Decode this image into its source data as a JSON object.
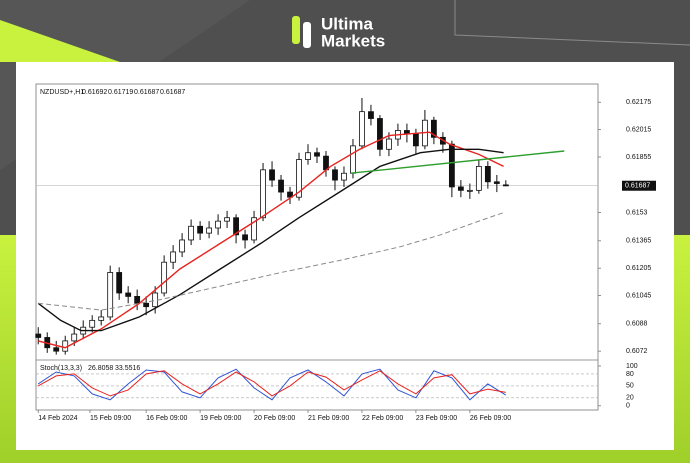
{
  "brand": {
    "line1": "Ultima",
    "line2": "Markets"
  },
  "chart_data": {
    "type": "candlestick",
    "symbol": "NZDUSD+,H1",
    "header_ohlc": [
      0.61692,
      0.61719,
      0.61687,
      0.61687
    ],
    "last_price": 0.61687,
    "ylim": [
      0.6068,
      0.6227
    ],
    "yticks": [
      0.62175,
      0.62015,
      0.61855,
      0.6153,
      0.61365,
      0.61205,
      0.61045,
      0.6088,
      0.6072
    ],
    "xlim": [
      -1,
      249
    ],
    "xticks": [
      {
        "value": 0,
        "label": "14 Feb 2024"
      },
      {
        "value": 23,
        "label": "15 Feb 09:00"
      },
      {
        "value": 48,
        "label": "16 Feb 09:00"
      },
      {
        "value": 72,
        "label": "19 Feb 09:00"
      },
      {
        "value": 96,
        "label": "20 Feb 09:00"
      },
      {
        "value": 120,
        "label": "21 Feb 09:00"
      },
      {
        "value": 144,
        "label": "22 Feb 09:00"
      },
      {
        "value": 168,
        "label": "23 Feb 09:00"
      },
      {
        "value": 192,
        "label": "26 Feb 09:00"
      }
    ],
    "x": [
      0,
      4,
      8,
      12,
      16,
      20,
      24,
      28,
      32,
      36,
      40,
      44,
      48,
      52,
      56,
      60,
      64,
      68,
      72,
      76,
      80,
      84,
      88,
      92,
      96,
      100,
      104,
      108,
      112,
      116,
      120,
      124,
      128,
      132,
      136,
      140,
      144,
      148,
      152,
      156,
      160,
      164,
      168,
      172,
      176,
      180,
      184,
      188,
      192,
      196,
      200,
      204,
      208
    ],
    "open": [
      0.6082,
      0.608,
      0.6074,
      0.6072,
      0.6078,
      0.6082,
      0.6086,
      0.609,
      0.6092,
      0.6118,
      0.6106,
      0.6104,
      0.61,
      0.6098,
      0.6106,
      0.6124,
      0.613,
      0.6137,
      0.6145,
      0.6141,
      0.6144,
      0.6148,
      0.615,
      0.614,
      0.6137,
      0.615,
      0.6178,
      0.6172,
      0.6165,
      0.6162,
      0.6184,
      0.6188,
      0.6186,
      0.6178,
      0.6172,
      0.6176,
      0.6192,
      0.6212,
      0.6208,
      0.619,
      0.6196,
      0.6201,
      0.6199,
      0.6192,
      0.6207,
      0.6197,
      0.6193,
      0.6168,
      0.6166,
      0.6166,
      0.618,
      0.6171,
      0.61692
    ],
    "high": [
      0.6086,
      0.6083,
      0.6078,
      0.6081,
      0.6086,
      0.609,
      0.6093,
      0.6096,
      0.6122,
      0.6121,
      0.611,
      0.6108,
      0.6104,
      0.611,
      0.6128,
      0.6134,
      0.6141,
      0.6149,
      0.6148,
      0.6148,
      0.6152,
      0.6154,
      0.6152,
      0.6143,
      0.6154,
      0.6182,
      0.6183,
      0.6175,
      0.6168,
      0.6188,
      0.6193,
      0.6191,
      0.6189,
      0.618,
      0.618,
      0.6196,
      0.622,
      0.6216,
      0.621,
      0.62,
      0.6205,
      0.6205,
      0.6202,
      0.6213,
      0.6209,
      0.62,
      0.6195,
      0.6172,
      0.617,
      0.6184,
      0.6183,
      0.6175,
      0.61719
    ],
    "low": [
      0.6076,
      0.6071,
      0.607,
      0.607,
      0.6075,
      0.6079,
      0.6083,
      0.6087,
      0.609,
      0.6102,
      0.61,
      0.6096,
      0.6093,
      0.6094,
      0.6104,
      0.612,
      0.6127,
      0.6134,
      0.6137,
      0.6138,
      0.614,
      0.6144,
      0.6135,
      0.6132,
      0.6135,
      0.6148,
      0.6168,
      0.616,
      0.6158,
      0.616,
      0.6181,
      0.6182,
      0.6174,
      0.6166,
      0.6168,
      0.6173,
      0.619,
      0.6204,
      0.6186,
      0.6186,
      0.6192,
      0.6194,
      0.6187,
      0.619,
      0.6193,
      0.6188,
      0.6162,
      0.6162,
      0.6161,
      0.6164,
      0.6167,
      0.6165,
      0.61687
    ],
    "close": [
      0.608,
      0.6074,
      0.6072,
      0.6078,
      0.6082,
      0.6086,
      0.609,
      0.6092,
      0.6118,
      0.6106,
      0.6104,
      0.61,
      0.6098,
      0.6106,
      0.6124,
      0.613,
      0.6137,
      0.6145,
      0.6141,
      0.6144,
      0.6148,
      0.615,
      0.614,
      0.6137,
      0.615,
      0.6178,
      0.6172,
      0.6165,
      0.6162,
      0.6184,
      0.6188,
      0.6186,
      0.6178,
      0.6172,
      0.6176,
      0.6192,
      0.6212,
      0.6208,
      0.619,
      0.6196,
      0.6201,
      0.6199,
      0.6192,
      0.6207,
      0.6197,
      0.6193,
      0.6168,
      0.6166,
      0.6166,
      0.618,
      0.6171,
      0.617,
      0.61687
    ],
    "series": [
      {
        "color": "#e8231f",
        "dash": false,
        "x": [
          0,
          12,
          28,
          45,
          63,
          81,
          99,
          116,
          130,
          143,
          156,
          174,
          183,
          196,
          207
        ],
        "values": [
          0.6078,
          0.6074,
          0.6085,
          0.61,
          0.612,
          0.6135,
          0.615,
          0.6165,
          0.618,
          0.619,
          0.6198,
          0.62,
          0.6193,
          0.6187,
          0.618
        ]
      },
      {
        "color": "#111111",
        "dash": false,
        "x": [
          0,
          10,
          19,
          28,
          45,
          63,
          81,
          99,
          116,
          134,
          152,
          170,
          183,
          196,
          207
        ],
        "values": [
          0.61,
          0.609,
          0.6084,
          0.6084,
          0.6092,
          0.6105,
          0.612,
          0.6135,
          0.615,
          0.6165,
          0.618,
          0.6188,
          0.619,
          0.619,
          0.6188
        ]
      },
      {
        "color": "#8a8a8a",
        "dash": true,
        "x": [
          0,
          28,
          54,
          81,
          108,
          134,
          161,
          179,
          196,
          207
        ],
        "values": [
          0.61,
          0.6096,
          0.6102,
          0.611,
          0.6118,
          0.6125,
          0.6133,
          0.614,
          0.6148,
          0.6153
        ]
      },
      {
        "color": "#2e9e2e",
        "dash": false,
        "x": [
          139,
          234
        ],
        "values": [
          0.6176,
          0.6189
        ]
      }
    ],
    "stoch": {
      "label": "Stoch(13,3,3)",
      "last_values": [
        26.8058,
        33.5516
      ],
      "ylim": [
        -8,
        110
      ],
      "yticks": [
        100,
        80,
        50,
        20,
        0
      ],
      "x": [
        0,
        8,
        16,
        24,
        32,
        40,
        48,
        56,
        64,
        72,
        80,
        88,
        96,
        104,
        112,
        120,
        128,
        136,
        144,
        152,
        160,
        168,
        176,
        184,
        192,
        200,
        208
      ],
      "series": [
        {
          "color": "#2f55d4",
          "values": [
            55,
            85,
            75,
            30,
            15,
            55,
            90,
            85,
            35,
            20,
            70,
            92,
            45,
            15,
            70,
            90,
            60,
            25,
            80,
            92,
            40,
            20,
            88,
            70,
            15,
            55,
            26.8058
          ]
        },
        {
          "color": "#e8231f",
          "values": [
            50,
            75,
            80,
            45,
            25,
            40,
            80,
            88,
            55,
            30,
            55,
            85,
            60,
            25,
            50,
            85,
            72,
            40,
            65,
            88,
            55,
            30,
            70,
            78,
            30,
            42,
            33.5516
          ]
        }
      ]
    }
  }
}
